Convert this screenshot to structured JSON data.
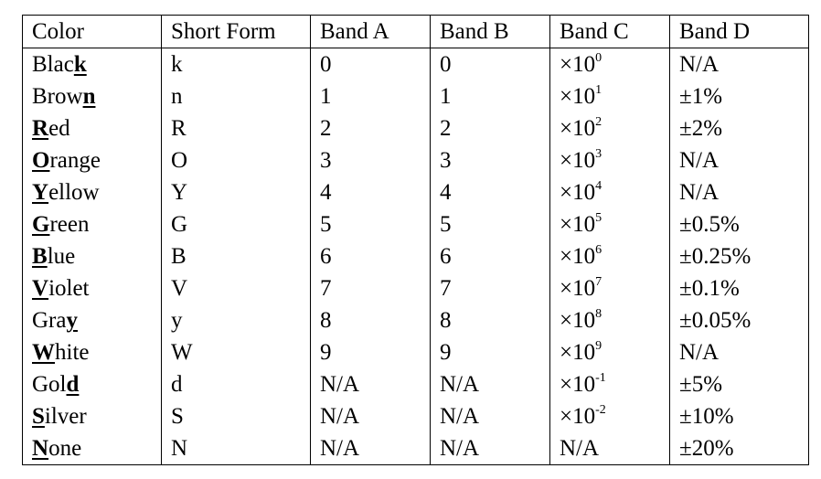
{
  "headers": [
    "Color",
    "Short Form",
    "Band A",
    "Band B",
    "Band C",
    "Band D"
  ],
  "rows": [
    {
      "pre": "Blac",
      "hl": "k",
      "post": "",
      "short": "k",
      "a": "0",
      "b": "0",
      "c_base": "×10",
      "c_exp": "0",
      "d": "N/A"
    },
    {
      "pre": "Brow",
      "hl": "n",
      "post": "",
      "short": "n",
      "a": "1",
      "b": "1",
      "c_base": "×10",
      "c_exp": "1",
      "d": "±1%"
    },
    {
      "pre": "",
      "hl": "R",
      "post": "ed",
      "short": "R",
      "a": "2",
      "b": "2",
      "c_base": "×10",
      "c_exp": "2",
      "d": "±2%"
    },
    {
      "pre": "",
      "hl": "O",
      "post": "range",
      "short": "O",
      "a": "3",
      "b": "3",
      "c_base": "×10",
      "c_exp": "3",
      "d": "N/A"
    },
    {
      "pre": "",
      "hl": "Y",
      "post": "ellow",
      "short": "Y",
      "a": "4",
      "b": "4",
      "c_base": "×10",
      "c_exp": "4",
      "d": "N/A"
    },
    {
      "pre": "",
      "hl": "G",
      "post": "reen",
      "short": "G",
      "a": "5",
      "b": "5",
      "c_base": "×10",
      "c_exp": "5",
      "d": "±0.5%"
    },
    {
      "pre": "",
      "hl": "B",
      "post": "lue",
      "short": "B",
      "a": "6",
      "b": "6",
      "c_base": "×10",
      "c_exp": "6",
      "d": "±0.25%"
    },
    {
      "pre": "",
      "hl": "V",
      "post": "iolet",
      "short": "V",
      "a": "7",
      "b": "7",
      "c_base": "×10",
      "c_exp": "7",
      "d": "±0.1%"
    },
    {
      "pre": "Gra",
      "hl": "y",
      "post": "",
      "short": "y",
      "a": "8",
      "b": "8",
      "c_base": "×10",
      "c_exp": "8",
      "d": "±0.05%"
    },
    {
      "pre": "",
      "hl": "W",
      "post": "hite",
      "short": "W",
      "a": "9",
      "b": "9",
      "c_base": "×10",
      "c_exp": "9",
      "d": "N/A"
    },
    {
      "pre": "Gol",
      "hl": "d",
      "post": "",
      "short": "d",
      "a": "N/A",
      "b": "N/A",
      "c_base": "×10",
      "c_exp": "-1",
      "d": "±5%"
    },
    {
      "pre": "",
      "hl": "S",
      "post": "ilver",
      "short": "S",
      "a": "N/A",
      "b": "N/A",
      "c_base": "×10",
      "c_exp": "-2",
      "d": "±10%"
    },
    {
      "pre": "",
      "hl": "N",
      "post": "one",
      "short": "N",
      "a": "N/A",
      "b": "N/A",
      "c_base": "N/A",
      "c_exp": "",
      "d": "±20%"
    }
  ]
}
